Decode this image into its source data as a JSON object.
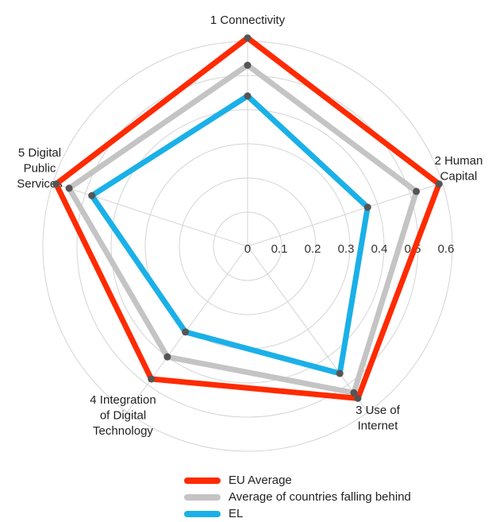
{
  "chart_data": {
    "type": "radar",
    "axes": [
      [
        "1 Connectivity"
      ],
      [
        "2 Human",
        "Capital"
      ],
      [
        "3 Use of",
        "Internet"
      ],
      [
        "4 Integration",
        "of Digital",
        "Technology"
      ],
      [
        "5 Digital",
        "Public",
        "Services"
      ]
    ],
    "rlim": [
      0,
      0.6
    ],
    "ticks": [
      "0",
      "0.1",
      "0.2",
      "0.3",
      "0.4",
      "0.5",
      "0.6"
    ],
    "tick_values": [
      0,
      0.1,
      0.2,
      0.3,
      0.4,
      0.5,
      0.6
    ],
    "grid": true,
    "legend_position": "bottom",
    "series": [
      {
        "name": "EU Average",
        "color": "#ff2a00",
        "values": [
          0.61,
          0.59,
          0.55,
          0.48,
          0.59
        ]
      },
      {
        "name": "Average of countries falling behind",
        "color": "#c4c4c4",
        "values": [
          0.53,
          0.52,
          0.53,
          0.4,
          0.55
        ]
      },
      {
        "name": "EL",
        "color": "#1ab0e8",
        "values": [
          0.44,
          0.37,
          0.46,
          0.31,
          0.48
        ]
      }
    ]
  }
}
